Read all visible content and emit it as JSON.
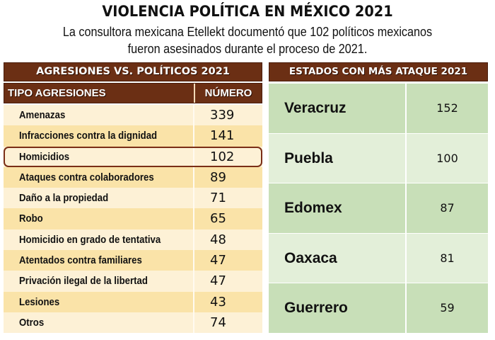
{
  "header": {
    "title": "VIOLENCIA POLÍTICA EN MÉXICO 2021",
    "subtitle_line1": "La consultora mexicana Etellekt documentó que 102 políticos mexicanos",
    "subtitle_line2": "fueron asesinados durante el proceso de 2021."
  },
  "colors": {
    "banner_brown": "#6b2f14",
    "left_row_light": "#fdf1d6",
    "left_row_dark": "#fae3a8",
    "right_row_dark": "#c8dfb8",
    "right_row_light": "#e3efd9",
    "highlight_border": "#7a2e16"
  },
  "left_table": {
    "title": "AGRESIONES VS. POLÍTICOS 2021",
    "columns": [
      "TIPO AGRESIONES",
      "NÚMERO"
    ],
    "highlighted_row": "Homicidios",
    "rows": [
      {
        "tipo": "Amenazas",
        "numero": "339"
      },
      {
        "tipo": "Infracciones contra la dignidad",
        "numero": "141"
      },
      {
        "tipo": "Homicidios",
        "numero": "102"
      },
      {
        "tipo": "Ataques contra colaboradores",
        "numero": "89"
      },
      {
        "tipo": "Daño a la propiedad",
        "numero": "71"
      },
      {
        "tipo": "Robo",
        "numero": "65"
      },
      {
        "tipo": "Homicidio en grado de tentativa",
        "numero": "48"
      },
      {
        "tipo": "Atentados contra familiares",
        "numero": "47"
      },
      {
        "tipo": "Privación ilegal de la libertad",
        "numero": "47"
      },
      {
        "tipo": "Lesiones",
        "numero": "43"
      },
      {
        "tipo": "Otros",
        "numero": "74"
      }
    ]
  },
  "right_table": {
    "title": "ESTADOS CON MÁS ATAQUE 2021",
    "rows": [
      {
        "estado": "Veracruz",
        "numero": "152"
      },
      {
        "estado": "Puebla",
        "numero": "100"
      },
      {
        "estado": "Edomex",
        "numero": "87"
      },
      {
        "estado": "Oaxaca",
        "numero": "81"
      },
      {
        "estado": "Guerrero",
        "numero": "59"
      }
    ]
  }
}
